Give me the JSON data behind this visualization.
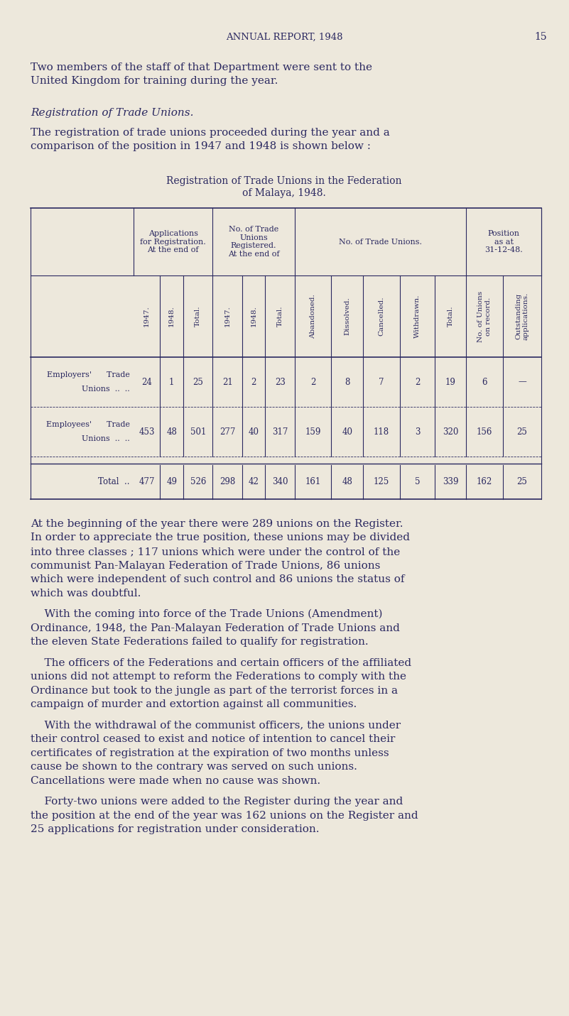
{
  "bg_color": "#ede8dc",
  "text_color": "#2a2860",
  "page_width": 8.01,
  "page_height": 14.31,
  "header_text": "ANNUAL REPORT, 1948",
  "page_number": "15",
  "para1_line1": "Two members of the staff of that Department were sent to the",
  "para1_line2": "United Kingdom for training during the year.",
  "section_title": "Registration of Trade Unions.",
  "para2_line1": "The registration of trade unions proceeded during the year and a",
  "para2_line2": "comparison of the position in 1947 and 1948 is shown below :",
  "table_title1": "Registration of Trade Unions in the Federation",
  "table_title2": "of Malaya, 1948.",
  "col_headers_bot": [
    "1947.",
    "1948.",
    "Total.",
    "1947.",
    "1948.",
    "Total.",
    "Abandoned.",
    "Dissolved.",
    "Cancelled.",
    "Withdrawn.",
    "Total.",
    "No. of Unions\non record.",
    "Outstanding\napplications."
  ],
  "row0_label1": "Employers'",
  "row0_label2": "Trade",
  "row0_label3": "Unions",
  "row0_label4": "..",
  "row0_label5": "..",
  "row0_vals": [
    24,
    1,
    25,
    21,
    2,
    23,
    2,
    8,
    7,
    2,
    19,
    6,
    "—"
  ],
  "row1_label1": "Employees'",
  "row1_label2": "Trade",
  "row1_label3": "Unions",
  "row1_label4": "..",
  "row1_label5": "..",
  "row1_vals": [
    453,
    48,
    501,
    277,
    40,
    317,
    159,
    40,
    118,
    3,
    320,
    156,
    25
  ],
  "row2_label": "Total",
  "row2_dots": "..",
  "row2_vals": [
    477,
    49,
    526,
    298,
    42,
    340,
    161,
    48,
    125,
    5,
    339,
    162,
    25
  ],
  "para3_lines": [
    "At the beginning of the year there were 289 unions on the Register.",
    "In order to appreciate the true position, these unions may be divided",
    "into three classes ; 117 unions which were under the control of the",
    "communist Pan-Malayan Federation of Trade Unions, 86 unions",
    "which were independent of such control and 86 unions the status of",
    "which was doubtful."
  ],
  "para4_lines": [
    "    With the coming into force of the Trade Unions (Amendment)",
    "Ordinance, 1948, the Pan-Malayan Federation of Trade Unions and",
    "the eleven State Federations failed to qualify for registration."
  ],
  "para5_lines": [
    "    The officers of the Federations and certain officers of the affiliated",
    "unions did not attempt to reform the Federations to comply with the",
    "Ordinance but took to the jungle as part of the terrorist forces in a",
    "campaign of murder and extortion against all communities."
  ],
  "para6_lines": [
    "    With the withdrawal of the communist officers, the unions under",
    "their control ceased to exist and notice of intention to cancel their",
    "certificates of registration at the expiration of two months unless",
    "cause be shown to the contrary was served on such unions.",
    "Cancellations were made when no cause was shown."
  ],
  "para7_lines": [
    "    Forty-two unions were added to the Register during the year and",
    "the position at the end of the year was 162 unions on the Register and",
    "25 applications for registration under consideration."
  ]
}
